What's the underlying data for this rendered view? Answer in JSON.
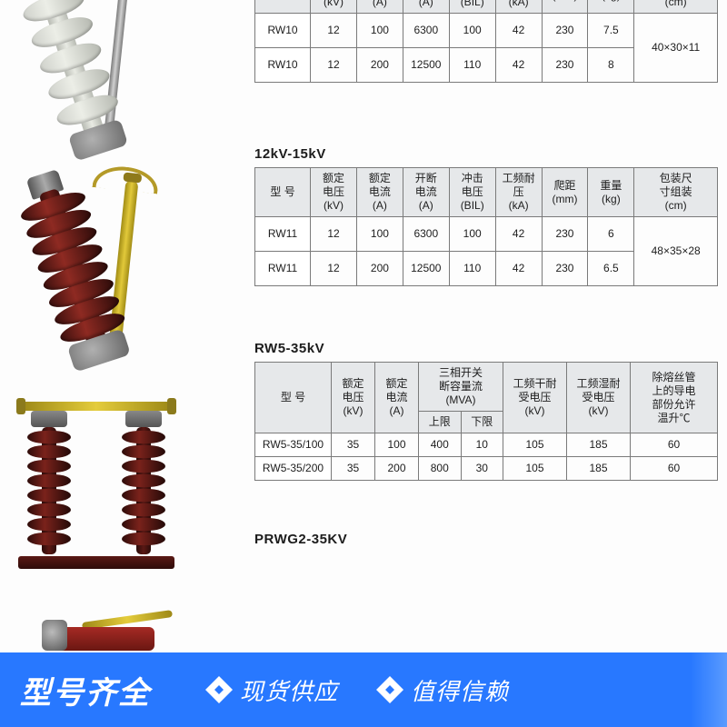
{
  "colors": {
    "promo_bg": "#2878ff",
    "table_header_bg": "#e6e8ea",
    "table_border": "#7a7a7a",
    "text": "#1d1d1d",
    "insulator_grey": "#d7d9d2",
    "insulator_red": "#6b1d18",
    "brass": "#e2c93a"
  },
  "headers": {
    "model": "型 号",
    "volt": {
      "name": "额定\n电压",
      "unit": "(kV)"
    },
    "curr": {
      "name": "额定\n电流",
      "unit": "(A)"
    },
    "break": {
      "name": "开断\n电流",
      "unit": "(A)"
    },
    "bil": {
      "name": "冲击\n电压",
      "unit": "(BIL)"
    },
    "pf": {
      "name": "工频耐压",
      "unit": "(kA)"
    },
    "creep": {
      "name": "爬距",
      "unit": "(mm)"
    },
    "weight": {
      "name": "重量",
      "unit": "(kg)"
    },
    "pack": {
      "name": "包装尺\n寸组装",
      "unit": "(cm)"
    },
    "mva": {
      "name": "三相开关\n断容量流",
      "unit": "(MVA)"
    },
    "mva_hi": "上限",
    "mva_lo": "下限",
    "dry": {
      "name": "工频干耐\n受电压",
      "unit": "(kV)"
    },
    "wet": {
      "name": "工频湿耐\n受电压",
      "unit": "(kV)"
    },
    "temp": {
      "name": "除熔丝管\n上的导电\n部份允许\n温升℃"
    }
  },
  "section1": {
    "title": "",
    "rows": [
      {
        "model": "RW10",
        "volt": "12",
        "curr": "100",
        "break": "6300",
        "bil": "100",
        "pf": "42",
        "creep": "230",
        "weight": "7.5"
      },
      {
        "model": "RW10",
        "volt": "12",
        "curr": "200",
        "break": "12500",
        "bil": "110",
        "pf": "42",
        "creep": "230",
        "weight": "8"
      }
    ],
    "pack": "40×30×11"
  },
  "section2": {
    "title": "12kV-15kV",
    "rows": [
      {
        "model": "RW11",
        "volt": "12",
        "curr": "100",
        "break": "6300",
        "bil": "100",
        "pf": "42",
        "creep": "230",
        "weight": "6"
      },
      {
        "model": "RW11",
        "volt": "12",
        "curr": "200",
        "break": "12500",
        "bil": "110",
        "pf": "42",
        "creep": "230",
        "weight": "6.5"
      }
    ],
    "pack": "48×35×28"
  },
  "section3": {
    "title": "RW5-35kV",
    "rows": [
      {
        "model": "RW5-35/100",
        "volt": "35",
        "curr": "100",
        "mva_hi": "400",
        "mva_lo": "10",
        "dry": "105",
        "wet": "185",
        "temp": "60"
      },
      {
        "model": "RW5-35/200",
        "volt": "35",
        "curr": "200",
        "mva_hi": "800",
        "mva_lo": "30",
        "dry": "105",
        "wet": "185",
        "temp": "60"
      }
    ]
  },
  "section4": {
    "title": "PRWG2-35KV"
  },
  "promo": {
    "main": "型号齐全",
    "tags": [
      "现货供应",
      "值得信赖"
    ]
  }
}
